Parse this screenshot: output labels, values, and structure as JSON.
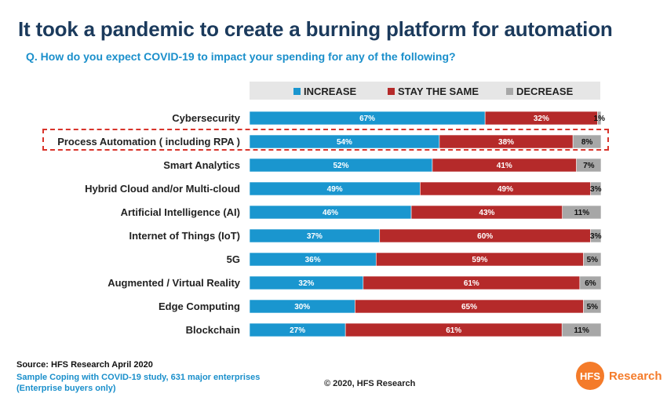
{
  "title": "It took a pandemic to create a burning platform for automation",
  "subtitle": "Q. How do you expect COVID-19 to impact your spending for any of the following?",
  "chart_data": {
    "type": "bar",
    "orientation": "horizontal",
    "stacked": true,
    "normalized_percent": true,
    "legend_position": "top",
    "categories": [
      "Cybersecurity",
      "Process Automation ( including RPA )",
      "Smart Analytics",
      "Hybrid Cloud and/or Multi-cloud",
      "Artificial Intelligence (AI)",
      "Internet of Things (IoT)",
      "5G",
      "Augmented / Virtual Reality",
      "Edge Computing",
      "Blockchain"
    ],
    "series": [
      {
        "name": "INCREASE",
        "color": "#1a96cf",
        "values": [
          67,
          54,
          52,
          49,
          46,
          37,
          36,
          32,
          30,
          27
        ]
      },
      {
        "name": "STAY THE SAME",
        "color": "#b52a2a",
        "values": [
          32,
          38,
          41,
          49,
          43,
          60,
          59,
          61,
          65,
          61
        ]
      },
      {
        "name": "DECREASE",
        "color": "#a7a7a7",
        "values": [
          1,
          8,
          7,
          3,
          11,
          3,
          5,
          6,
          5,
          11
        ]
      }
    ],
    "value_suffix": "%",
    "highlighted_category": "Process Automation ( including RPA )"
  },
  "footer": {
    "source": "Source: HFS Research April 2020",
    "sample_line1": "Sample Coping with COVID-19 study, 631 major enterprises",
    "sample_line2": "(Enterprise buyers only)",
    "copyright": "© 2020, HFS Research"
  },
  "logo": {
    "mark": "HFS",
    "text": "Research",
    "color": "#f47b2a"
  }
}
